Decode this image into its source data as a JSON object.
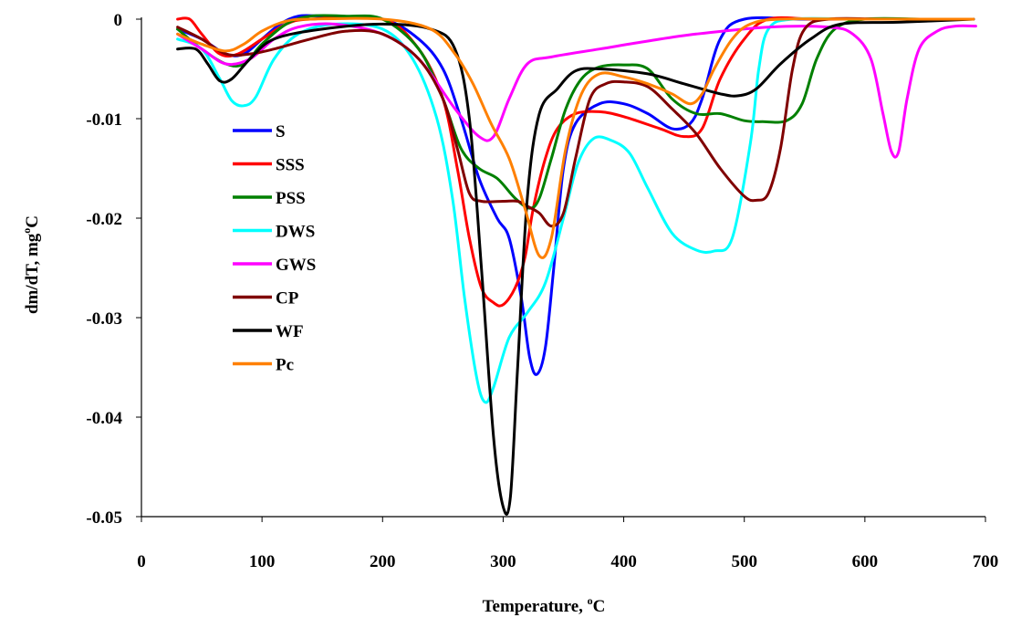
{
  "chart_data": {
    "type": "line",
    "xlabel": "Temperature, ",
    "xlabel_unit_sup": "o",
    "xlabel_unit": "C",
    "ylabel": "dm/dT, mg",
    "ylabel_unit_sup": "o",
    "ylabel_unit": "C",
    "xlim": [
      0,
      700
    ],
    "ylim": [
      -0.05,
      0
    ],
    "x_ticks": [
      0,
      100,
      200,
      300,
      400,
      500,
      600,
      700
    ],
    "x_tick_labels": [
      "0",
      "100",
      "200",
      "300",
      "400",
      "500",
      "600",
      "700"
    ],
    "y_ticks": [
      0,
      -0.01,
      -0.02,
      -0.03,
      -0.04,
      -0.05
    ],
    "y_tick_labels": [
      "0",
      "-0.01",
      "-0.02",
      "-0.03",
      "-0.04",
      "-0.05"
    ],
    "grid": false,
    "legend_position": "left",
    "series": [
      {
        "name": "S",
        "color": "#0000ff",
        "points": [
          [
            30,
            -0.001
          ],
          [
            50,
            -0.002
          ],
          [
            70,
            -0.0035
          ],
          [
            85,
            -0.0035
          ],
          [
            100,
            -0.002
          ],
          [
            115,
            -0.0005
          ],
          [
            130,
            0.0003
          ],
          [
            150,
            0.0003
          ],
          [
            200,
            0
          ],
          [
            230,
            -0.002
          ],
          [
            250,
            -0.005
          ],
          [
            265,
            -0.01
          ],
          [
            280,
            -0.016
          ],
          [
            295,
            -0.02
          ],
          [
            305,
            -0.022
          ],
          [
            315,
            -0.028
          ],
          [
            322,
            -0.034
          ],
          [
            328,
            -0.0357
          ],
          [
            335,
            -0.033
          ],
          [
            342,
            -0.025
          ],
          [
            350,
            -0.015
          ],
          [
            360,
            -0.0105
          ],
          [
            380,
            -0.0085
          ],
          [
            400,
            -0.0085
          ],
          [
            420,
            -0.0095
          ],
          [
            440,
            -0.011
          ],
          [
            455,
            -0.0105
          ],
          [
            465,
            -0.008
          ],
          [
            480,
            -0.002
          ],
          [
            500,
            0
          ],
          [
            550,
            0
          ],
          [
            600,
            0
          ],
          [
            650,
            0
          ],
          [
            690,
            0
          ]
        ]
      },
      {
        "name": "SSS",
        "color": "#ff0000",
        "points": [
          [
            30,
            0
          ],
          [
            40,
            0
          ],
          [
            50,
            -0.0015
          ],
          [
            65,
            -0.0035
          ],
          [
            80,
            -0.0035
          ],
          [
            100,
            -0.002
          ],
          [
            120,
            -0.0005
          ],
          [
            140,
            0
          ],
          [
            200,
            0
          ],
          [
            230,
            -0.003
          ],
          [
            250,
            -0.008
          ],
          [
            262,
            -0.015
          ],
          [
            272,
            -0.022
          ],
          [
            282,
            -0.027
          ],
          [
            292,
            -0.0285
          ],
          [
            300,
            -0.0287
          ],
          [
            310,
            -0.027
          ],
          [
            318,
            -0.024
          ],
          [
            325,
            -0.019
          ],
          [
            335,
            -0.014
          ],
          [
            345,
            -0.011
          ],
          [
            360,
            -0.0095
          ],
          [
            380,
            -0.0093
          ],
          [
            400,
            -0.0098
          ],
          [
            430,
            -0.011
          ],
          [
            450,
            -0.0118
          ],
          [
            465,
            -0.011
          ],
          [
            480,
            -0.006
          ],
          [
            500,
            -0.002
          ],
          [
            520,
            0
          ],
          [
            560,
            0
          ],
          [
            620,
            0
          ],
          [
            690,
            0
          ]
        ]
      },
      {
        "name": "PSS",
        "color": "#008000",
        "points": [
          [
            30,
            -0.001
          ],
          [
            50,
            -0.003
          ],
          [
            70,
            -0.0045
          ],
          [
            85,
            -0.0045
          ],
          [
            100,
            -0.0025
          ],
          [
            120,
            -0.0005
          ],
          [
            140,
            0.0003
          ],
          [
            170,
            0.0003
          ],
          [
            200,
            0
          ],
          [
            230,
            -0.003
          ],
          [
            250,
            -0.008
          ],
          [
            265,
            -0.013
          ],
          [
            280,
            -0.015
          ],
          [
            295,
            -0.016
          ],
          [
            310,
            -0.018
          ],
          [
            322,
            -0.019
          ],
          [
            330,
            -0.018
          ],
          [
            340,
            -0.014
          ],
          [
            352,
            -0.009
          ],
          [
            365,
            -0.006
          ],
          [
            380,
            -0.0048
          ],
          [
            400,
            -0.0046
          ],
          [
            420,
            -0.005
          ],
          [
            440,
            -0.008
          ],
          [
            460,
            -0.0095
          ],
          [
            480,
            -0.0095
          ],
          [
            500,
            -0.0102
          ],
          [
            515,
            -0.0103
          ],
          [
            535,
            -0.0102
          ],
          [
            548,
            -0.0085
          ],
          [
            560,
            -0.004
          ],
          [
            575,
            -0.001
          ],
          [
            600,
            0
          ],
          [
            650,
            0
          ],
          [
            690,
            0
          ]
        ]
      },
      {
        "name": "DWS",
        "color": "#00ffff",
        "points": [
          [
            30,
            -0.002
          ],
          [
            50,
            -0.003
          ],
          [
            65,
            -0.006
          ],
          [
            75,
            -0.0082
          ],
          [
            85,
            -0.0087
          ],
          [
            95,
            -0.0078
          ],
          [
            110,
            -0.004
          ],
          [
            130,
            -0.0015
          ],
          [
            160,
            -0.0005
          ],
          [
            200,
            -0.001
          ],
          [
            225,
            -0.004
          ],
          [
            245,
            -0.01
          ],
          [
            258,
            -0.018
          ],
          [
            268,
            -0.028
          ],
          [
            278,
            -0.036
          ],
          [
            285,
            -0.0385
          ],
          [
            292,
            -0.037
          ],
          [
            305,
            -0.032
          ],
          [
            320,
            -0.0295
          ],
          [
            335,
            -0.0265
          ],
          [
            350,
            -0.02
          ],
          [
            362,
            -0.0145
          ],
          [
            375,
            -0.012
          ],
          [
            390,
            -0.0122
          ],
          [
            405,
            -0.0135
          ],
          [
            420,
            -0.017
          ],
          [
            440,
            -0.0215
          ],
          [
            460,
            -0.0232
          ],
          [
            475,
            -0.0233
          ],
          [
            490,
            -0.022
          ],
          [
            505,
            -0.0125
          ],
          [
            512,
            -0.005
          ],
          [
            520,
            -0.001
          ],
          [
            540,
            0
          ],
          [
            600,
            0
          ],
          [
            690,
            0
          ]
        ]
      },
      {
        "name": "GWS",
        "color": "#ff00ff",
        "points": [
          [
            30,
            -0.0015
          ],
          [
            50,
            -0.003
          ],
          [
            70,
            -0.0045
          ],
          [
            90,
            -0.004
          ],
          [
            110,
            -0.002
          ],
          [
            130,
            -0.0008
          ],
          [
            160,
            -0.0005
          ],
          [
            200,
            -0.0015
          ],
          [
            230,
            -0.004
          ],
          [
            260,
            -0.009
          ],
          [
            280,
            -0.0118
          ],
          [
            292,
            -0.0118
          ],
          [
            305,
            -0.008
          ],
          [
            320,
            -0.0045
          ],
          [
            340,
            -0.0038
          ],
          [
            380,
            -0.003
          ],
          [
            420,
            -0.0022
          ],
          [
            460,
            -0.0015
          ],
          [
            520,
            -0.0008
          ],
          [
            570,
            -0.0008
          ],
          [
            590,
            -0.0015
          ],
          [
            605,
            -0.004
          ],
          [
            615,
            -0.0095
          ],
          [
            622,
            -0.0133
          ],
          [
            628,
            -0.0133
          ],
          [
            635,
            -0.008
          ],
          [
            645,
            -0.003
          ],
          [
            660,
            -0.0012
          ],
          [
            675,
            -0.0007
          ],
          [
            692,
            -0.0007
          ]
        ]
      },
      {
        "name": "CP",
        "color": "#800000",
        "points": [
          [
            30,
            -0.0008
          ],
          [
            50,
            -0.002
          ],
          [
            70,
            -0.0035
          ],
          [
            90,
            -0.0035
          ],
          [
            110,
            -0.003
          ],
          [
            140,
            -0.002
          ],
          [
            170,
            -0.0012
          ],
          [
            200,
            -0.0015
          ],
          [
            230,
            -0.004
          ],
          [
            250,
            -0.008
          ],
          [
            262,
            -0.013
          ],
          [
            272,
            -0.0175
          ],
          [
            282,
            -0.0183
          ],
          [
            300,
            -0.0183
          ],
          [
            312,
            -0.0183
          ],
          [
            320,
            -0.0188
          ],
          [
            330,
            -0.0195
          ],
          [
            340,
            -0.0208
          ],
          [
            350,
            -0.0195
          ],
          [
            360,
            -0.014
          ],
          [
            372,
            -0.008
          ],
          [
            385,
            -0.0065
          ],
          [
            400,
            -0.0063
          ],
          [
            420,
            -0.0068
          ],
          [
            440,
            -0.009
          ],
          [
            460,
            -0.0115
          ],
          [
            480,
            -0.015
          ],
          [
            500,
            -0.0178
          ],
          [
            510,
            -0.0182
          ],
          [
            520,
            -0.0175
          ],
          [
            530,
            -0.013
          ],
          [
            540,
            -0.005
          ],
          [
            550,
            -0.001
          ],
          [
            570,
            0
          ],
          [
            620,
            0
          ],
          [
            690,
            0
          ]
        ]
      },
      {
        "name": "WF",
        "color": "#000000",
        "points": [
          [
            30,
            -0.003
          ],
          [
            45,
            -0.003
          ],
          [
            55,
            -0.0045
          ],
          [
            65,
            -0.0062
          ],
          [
            75,
            -0.006
          ],
          [
            90,
            -0.004
          ],
          [
            110,
            -0.002
          ],
          [
            150,
            -0.001
          ],
          [
            200,
            -0.0005
          ],
          [
            240,
            -0.001
          ],
          [
            260,
            -0.003
          ],
          [
            272,
            -0.01
          ],
          [
            282,
            -0.025
          ],
          [
            292,
            -0.042
          ],
          [
            300,
            -0.049
          ],
          [
            306,
            -0.048
          ],
          [
            312,
            -0.035
          ],
          [
            320,
            -0.018
          ],
          [
            330,
            -0.0095
          ],
          [
            345,
            -0.007
          ],
          [
            360,
            -0.0052
          ],
          [
            380,
            -0.005
          ],
          [
            420,
            -0.0055
          ],
          [
            450,
            -0.0065
          ],
          [
            480,
            -0.0075
          ],
          [
            495,
            -0.0077
          ],
          [
            510,
            -0.007
          ],
          [
            530,
            -0.0045
          ],
          [
            555,
            -0.002
          ],
          [
            580,
            -0.0005
          ],
          [
            630,
            -0.0003
          ],
          [
            690,
            0
          ]
        ]
      },
      {
        "name": "Pc",
        "color": "#ff8000",
        "points": [
          [
            30,
            -0.0015
          ],
          [
            50,
            -0.0025
          ],
          [
            70,
            -0.0032
          ],
          [
            85,
            -0.0025
          ],
          [
            100,
            -0.0012
          ],
          [
            120,
            -0.0002
          ],
          [
            140,
            0
          ],
          [
            200,
            0
          ],
          [
            240,
            -0.001
          ],
          [
            260,
            -0.0035
          ],
          [
            275,
            -0.0065
          ],
          [
            290,
            -0.0105
          ],
          [
            305,
            -0.014
          ],
          [
            318,
            -0.019
          ],
          [
            330,
            -0.0238
          ],
          [
            340,
            -0.022
          ],
          [
            352,
            -0.013
          ],
          [
            365,
            -0.0075
          ],
          [
            380,
            -0.0055
          ],
          [
            400,
            -0.0058
          ],
          [
            420,
            -0.0065
          ],
          [
            440,
            -0.0075
          ],
          [
            455,
            -0.0085
          ],
          [
            465,
            -0.0075
          ],
          [
            475,
            -0.005
          ],
          [
            490,
            -0.002
          ],
          [
            505,
            -0.0005
          ],
          [
            530,
            0
          ],
          [
            600,
            0
          ],
          [
            690,
            0
          ]
        ]
      }
    ]
  }
}
